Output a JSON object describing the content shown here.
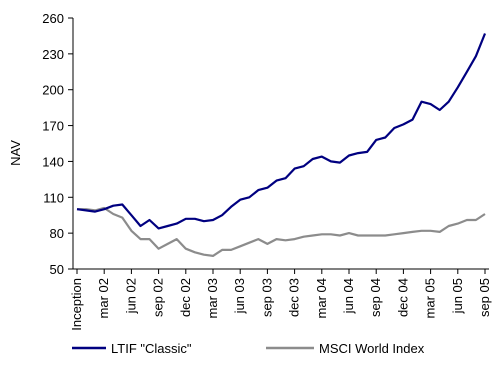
{
  "chart_data": {
    "type": "line",
    "ylabel": "NAV",
    "ylim": [
      50,
      260
    ],
    "yticks": [
      50,
      80,
      110,
      140,
      170,
      200,
      230,
      260
    ],
    "xtick_labels": [
      "Inception",
      "mar 02",
      "jun 02",
      "sep 02",
      "dec 02",
      "mar 03",
      "jun 03",
      "sep 03",
      "dec 03",
      "mar 04",
      "jun 04",
      "sep 04",
      "dec 04",
      "mar 05",
      "jun 05",
      "sep 05"
    ],
    "grid": false,
    "legend_position": "bottom",
    "series": [
      {
        "name": "LTIF \"Classic\"",
        "color": "#000080",
        "values": [
          100,
          99,
          98,
          100,
          103,
          104,
          95,
          86,
          91,
          84,
          86,
          88,
          92,
          92,
          90,
          91,
          95,
          102,
          108,
          110,
          116,
          118,
          124,
          126,
          134,
          136,
          142,
          144,
          140,
          139,
          145,
          147,
          148,
          158,
          160,
          168,
          171,
          175,
          190,
          188,
          183,
          190,
          202,
          215,
          228,
          247
        ]
      },
      {
        "name": "MSCI World Index",
        "color": "#8c8c8c",
        "values": [
          100,
          100,
          99,
          101,
          96,
          93,
          82,
          75,
          75,
          67,
          71,
          75,
          67,
          64,
          62,
          61,
          66,
          66,
          69,
          72,
          75,
          71,
          75,
          74,
          75,
          77,
          78,
          79,
          79,
          78,
          80,
          78,
          78,
          78,
          78,
          79,
          80,
          81,
          82,
          82,
          81,
          86,
          88,
          91,
          91,
          96
        ]
      }
    ]
  }
}
